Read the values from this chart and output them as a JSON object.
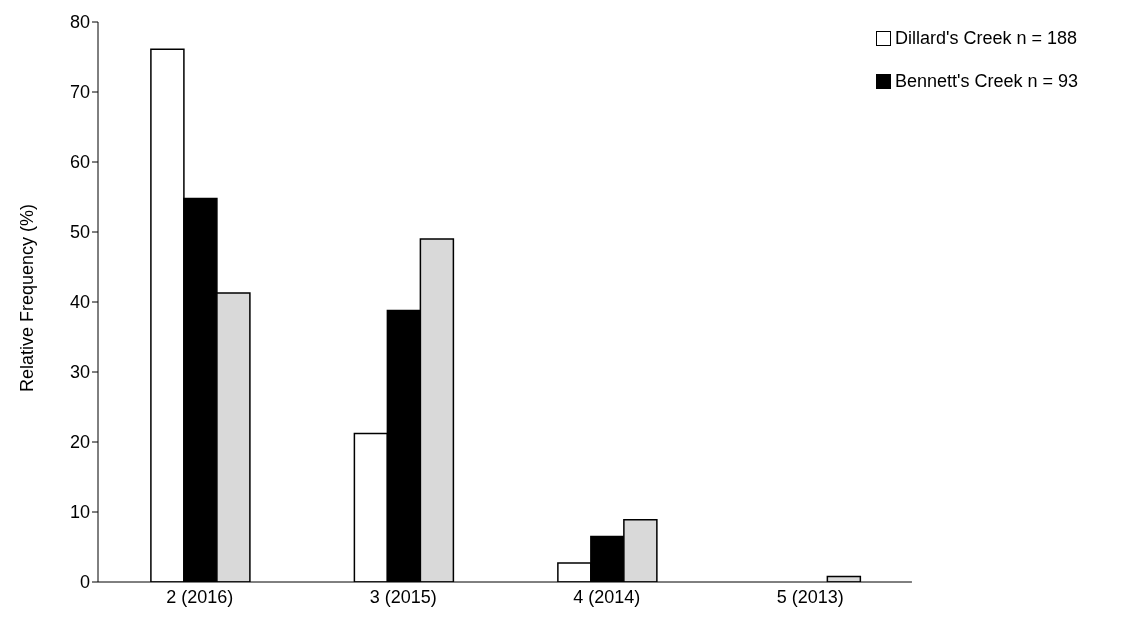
{
  "chart_data": {
    "type": "bar",
    "ylabel": "Relative Frequency (%)",
    "categories": [
      "2 (2016)",
      "3 (2015)",
      "4 (2014)",
      "5 (2013)"
    ],
    "series": [
      {
        "name": "Dillard's Creek n = 188",
        "color": "#ffffff",
        "values": [
          76.1,
          21.2,
          2.7,
          0
        ]
      },
      {
        "name": "Bennett's Creek  n = 93",
        "color": "#000000",
        "values": [
          54.8,
          38.8,
          6.5,
          0
        ]
      },
      {
        "color": "#d9d9d9",
        "values": [
          41.3,
          49.0,
          8.9,
          0.8
        ]
      }
    ],
    "ylim": [
      0,
      80
    ],
    "yticks": [
      0,
      10,
      20,
      30,
      40,
      50,
      60,
      70,
      80
    ],
    "grid": false,
    "legend": "top right"
  }
}
